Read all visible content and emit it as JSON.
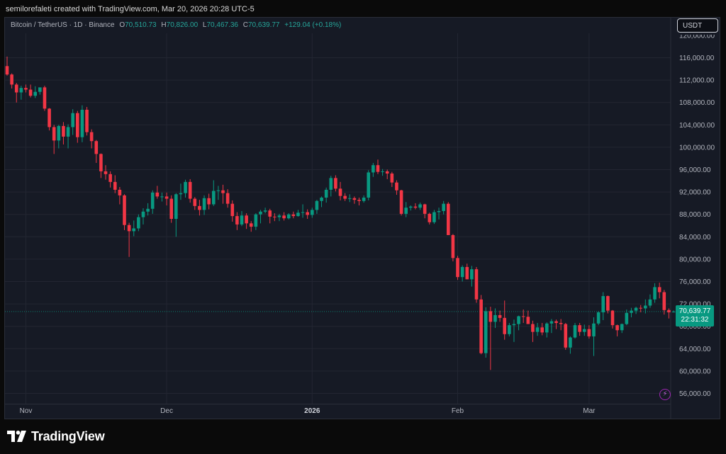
{
  "header": {
    "creator_line": "semilorefaleti created with TradingView.com, Mar 20, 2026 20:28 UTC-5"
  },
  "legend": {
    "symbol": "Bitcoin / TetherUS · 1D · Binance",
    "open_label": "O",
    "open": "70,510.73",
    "high_label": "H",
    "high": "70,826.00",
    "low_label": "L",
    "low": "70,467.36",
    "close_label": "C",
    "close": "70,639.77",
    "change": "+129.04 (+0.18%)"
  },
  "toolbar": {
    "currency_button": "USDT"
  },
  "price_tag": {
    "price": "70,639.77",
    "countdown": "22:31:32"
  },
  "footer": {
    "logo_text": "TradingView"
  },
  "colors": {
    "up": "#089981",
    "down": "#f23645",
    "background": "#161a25",
    "grid": "#232632",
    "axis_text": "#b2b5be",
    "accent_purple": "#9c27b0"
  },
  "icons": {
    "alert": "lightning-icon",
    "brand": "tradingview-logo-icon"
  },
  "chart_data": {
    "type": "candlestick",
    "y_axis_ticks": [
      "56,000.00",
      "60,000.00",
      "64,000.00",
      "68,000.00",
      "72,000.00",
      "76,000.00",
      "80,000.00",
      "84,000.00",
      "88,000.00",
      "92,000.00",
      "96,000.00",
      "100,000.00",
      "104,000.00",
      "108,000.00",
      "112,000.00",
      "116,000.00"
    ],
    "y_tick_values": [
      56000,
      60000,
      64000,
      68000,
      72000,
      76000,
      80000,
      84000,
      88000,
      92000,
      96000,
      100000,
      104000,
      108000,
      112000,
      116000
    ],
    "ylim": [
      54000,
      120000
    ],
    "x_axis_labels": [
      {
        "label": "Nov",
        "day": 4,
        "bold": false
      },
      {
        "label": "Dec",
        "day": 34,
        "bold": false
      },
      {
        "label": "2026",
        "day": 65,
        "bold": true
      },
      {
        "label": "Feb",
        "day": 96,
        "bold": false
      },
      {
        "label": "Mar",
        "day": 124,
        "bold": false
      }
    ],
    "ohlc": [
      [
        114500,
        116200,
        112800,
        113000
      ],
      [
        113000,
        113200,
        110500,
        111200
      ],
      [
        111200,
        111500,
        108000,
        109800
      ],
      [
        109800,
        111000,
        108500,
        110600
      ],
      [
        110600,
        111200,
        109800,
        110300
      ],
      [
        110300,
        111200,
        108900,
        109200
      ],
      [
        109200,
        110900,
        108800,
        109900
      ],
      [
        109900,
        110500,
        109400,
        110700
      ],
      [
        110700,
        111000,
        106500,
        106900
      ],
      [
        106900,
        107000,
        103000,
        103600
      ],
      [
        103600,
        104000,
        98800,
        101200
      ],
      [
        101200,
        104000,
        99800,
        103800
      ],
      [
        103800,
        104500,
        100500,
        101900
      ],
      [
        101900,
        104100,
        99800,
        103600
      ],
      [
        103600,
        106800,
        102200,
        106100
      ],
      [
        106100,
        106500,
        100800,
        101800
      ],
      [
        101800,
        107500,
        100900,
        106700
      ],
      [
        106700,
        107200,
        102100,
        102700
      ],
      [
        102700,
        103200,
        99800,
        101100
      ],
      [
        101100,
        101300,
        97200,
        98800
      ],
      [
        98800,
        98900,
        94500,
        95700
      ],
      [
        95700,
        96800,
        94200,
        95200
      ],
      [
        95200,
        95700,
        92800,
        93800
      ],
      [
        93800,
        95000,
        91800,
        92400
      ],
      [
        92400,
        92900,
        89800,
        91400
      ],
      [
        91400,
        91600,
        85200,
        86100
      ],
      [
        86100,
        86500,
        80400,
        85000
      ],
      [
        85000,
        86900,
        84100,
        85500
      ],
      [
        85500,
        88000,
        85000,
        87500
      ],
      [
        87500,
        89100,
        86200,
        88500
      ],
      [
        88500,
        90000,
        87800,
        89000
      ],
      [
        89000,
        92300,
        88100,
        91900
      ],
      [
        91900,
        93100,
        90800,
        91200
      ],
      [
        91200,
        91900,
        90300,
        91200
      ],
      [
        91200,
        91900,
        89600,
        90800
      ],
      [
        90800,
        91400,
        86500,
        87200
      ],
      [
        87200,
        91800,
        84000,
        91600
      ],
      [
        91600,
        93500,
        90600,
        91800
      ],
      [
        91800,
        94200,
        91000,
        93800
      ],
      [
        93800,
        94300,
        90100,
        90800
      ],
      [
        90800,
        91100,
        88800,
        89500
      ],
      [
        89500,
        90600,
        87800,
        88800
      ],
      [
        88800,
        91400,
        87900,
        90900
      ],
      [
        90900,
        91700,
        88900,
        89800
      ],
      [
        89800,
        94100,
        89500,
        92200
      ],
      [
        92200,
        93100,
        90600,
        92300
      ],
      [
        92300,
        93300,
        89900,
        91800
      ],
      [
        91800,
        92500,
        89200,
        89900
      ],
      [
        89900,
        90500,
        86700,
        87700
      ],
      [
        87700,
        88400,
        85200,
        86200
      ],
      [
        86200,
        88600,
        85900,
        87800
      ],
      [
        87800,
        88200,
        85400,
        86400
      ],
      [
        86400,
        86800,
        84900,
        85800
      ],
      [
        85800,
        88200,
        85200,
        88000
      ],
      [
        88000,
        88800,
        86400,
        88500
      ],
      [
        88500,
        89200,
        88200,
        88700
      ],
      [
        88700,
        89000,
        86400,
        87600
      ],
      [
        87600,
        88200,
        86800,
        87500
      ],
      [
        87500,
        88100,
        86800,
        87800
      ],
      [
        87800,
        88400,
        86900,
        87300
      ],
      [
        87300,
        88200,
        87100,
        88000
      ],
      [
        88000,
        88500,
        87300,
        87700
      ],
      [
        87700,
        88800,
        87600,
        88300
      ],
      [
        88300,
        89800,
        87400,
        88400
      ],
      [
        88400,
        88900,
        87200,
        87900
      ],
      [
        87900,
        89200,
        87400,
        88800
      ],
      [
        88800,
        90600,
        88100,
        90400
      ],
      [
        90400,
        91200,
        89300,
        91000
      ],
      [
        91000,
        92800,
        90100,
        92400
      ],
      [
        92400,
        94900,
        91200,
        94500
      ],
      [
        94500,
        95000,
        92100,
        92600
      ],
      [
        92600,
        93800,
        90500,
        91300
      ],
      [
        91300,
        91800,
        90400,
        90800
      ],
      [
        90800,
        91600,
        90200,
        90900
      ],
      [
        90900,
        91200,
        89900,
        90600
      ],
      [
        90600,
        91000,
        89600,
        90400
      ],
      [
        90400,
        91400,
        90100,
        91000
      ],
      [
        91000,
        95900,
        90500,
        95500
      ],
      [
        95500,
        97200,
        94700,
        96800
      ],
      [
        96800,
        97800,
        95200,
        95600
      ],
      [
        95600,
        96100,
        94900,
        95700
      ],
      [
        95700,
        96000,
        94300,
        95300
      ],
      [
        95300,
        95600,
        92900,
        93700
      ],
      [
        93700,
        94100,
        91500,
        92300
      ],
      [
        92300,
        92400,
        87800,
        88100
      ],
      [
        88100,
        90200,
        87500,
        89200
      ],
      [
        89200,
        89600,
        88700,
        89400
      ],
      [
        89400,
        90000,
        88900,
        89200
      ],
      [
        89200,
        90100,
        88800,
        89800
      ],
      [
        89800,
        89900,
        87300,
        88100
      ],
      [
        88100,
        88300,
        86200,
        86600
      ],
      [
        86600,
        88800,
        86300,
        88400
      ],
      [
        88400,
        89200,
        87100,
        88600
      ],
      [
        88600,
        90400,
        88000,
        89900
      ],
      [
        89900,
        90200,
        84600,
        84300
      ],
      [
        84300,
        84500,
        79600,
        80200
      ],
      [
        80200,
        80600,
        76300,
        76800
      ],
      [
        76800,
        78900,
        76000,
        78600
      ],
      [
        78600,
        79200,
        76400,
        76400
      ],
      [
        76400,
        78800,
        75100,
        78200
      ],
      [
        78200,
        78600,
        72200,
        72800
      ],
      [
        72800,
        73600,
        63000,
        63200
      ],
      [
        63200,
        71400,
        62400,
        70700
      ],
      [
        70700,
        71500,
        60200,
        68800
      ],
      [
        68800,
        71200,
        67700,
        70000
      ],
      [
        70000,
        70800,
        68800,
        69500
      ],
      [
        69500,
        72600,
        65600,
        66600
      ],
      [
        66600,
        68600,
        66200,
        68200
      ],
      [
        68200,
        69200,
        65200,
        68400
      ],
      [
        68400,
        69900,
        67300,
        69800
      ],
      [
        69800,
        71000,
        68600,
        69700
      ],
      [
        69700,
        70800,
        68700,
        68400
      ],
      [
        68400,
        69000,
        65200,
        67000
      ],
      [
        67000,
        68600,
        66300,
        67800
      ],
      [
        67800,
        68600,
        66400,
        66900
      ],
      [
        66900,
        68700,
        66000,
        68500
      ],
      [
        68500,
        69300,
        66800,
        68900
      ],
      [
        68900,
        69200,
        67500,
        68600
      ],
      [
        68600,
        69300,
        67300,
        68400
      ],
      [
        68400,
        68600,
        63800,
        64200
      ],
      [
        64200,
        66200,
        63100,
        66000
      ],
      [
        66000,
        68600,
        65800,
        68200
      ],
      [
        68200,
        68600,
        66300,
        67000
      ],
      [
        67000,
        68300,
        66300,
        67500
      ],
      [
        67500,
        68200,
        65800,
        66200
      ],
      [
        66200,
        69600,
        62700,
        68500
      ],
      [
        68500,
        70700,
        68200,
        70500
      ],
      [
        70500,
        74100,
        69100,
        73400
      ],
      [
        73400,
        73500,
        70300,
        70800
      ],
      [
        70800,
        70900,
        67600,
        68200
      ],
      [
        68200,
        68300,
        66200,
        67300
      ],
      [
        67300,
        68500,
        66800,
        68400
      ],
      [
        68400,
        71000,
        68200,
        70400
      ],
      [
        70400,
        71300,
        69600,
        70800
      ],
      [
        70800,
        71500,
        70200,
        71300
      ],
      [
        71300,
        71800,
        70500,
        71200
      ],
      [
        71200,
        72800,
        70300,
        71700
      ],
      [
        71700,
        73700,
        71300,
        72800
      ],
      [
        72800,
        75700,
        72200,
        75000
      ],
      [
        75000,
        75800,
        73000,
        74100
      ],
      [
        74100,
        74500,
        70100,
        70900
      ],
      [
        70900,
        71200,
        69400,
        70500
      ],
      [
        70500,
        70826,
        70467,
        70640
      ]
    ]
  }
}
